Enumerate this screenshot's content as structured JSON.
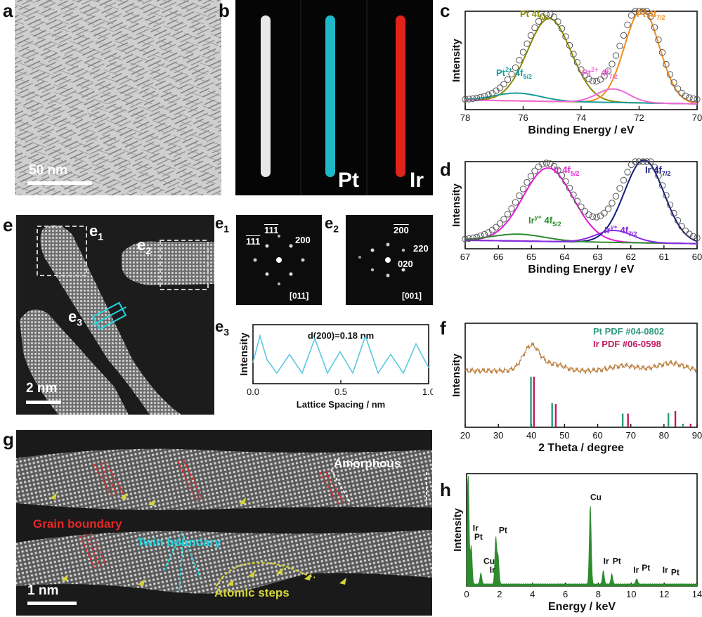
{
  "panels": {
    "a": {
      "label": "a",
      "scale": "50 nm"
    },
    "b": {
      "label": "b",
      "ch_pt": "Pt",
      "ch_ir": "Ir"
    },
    "c": {
      "label": "c"
    },
    "d": {
      "label": "d"
    },
    "e": {
      "label": "e",
      "e1": "e",
      "e1s": "1",
      "e2": "e",
      "e2s": "1",
      "e2b": "e",
      "e2bs": "2",
      "e3": "e",
      "e3s": "3",
      "scale": "2 nm"
    },
    "e1": {
      "label": "e",
      "sub": "1",
      "spots": [
        "111",
        "111",
        "200"
      ],
      "zone": "[011]"
    },
    "e2": {
      "label": "e",
      "sub": "2",
      "spots": [
        "200",
        "220",
        "020"
      ],
      "zone": "[001]"
    },
    "e3": {
      "label": "e",
      "sub": "3"
    },
    "f": {
      "label": "f"
    },
    "g": {
      "label": "g",
      "scale": "1 nm",
      "grain": "Grain boundary",
      "twin": "Twin boundary",
      "amorphous": "Amorphous",
      "steps": "Atomic steps"
    },
    "h": {
      "label": "h"
    }
  },
  "chart_data": [
    {
      "id": "c",
      "type": "line",
      "xlabel": "Binding Energy / eV",
      "ylabel": "Intensity",
      "xlim": [
        78,
        70
      ],
      "xticks": [
        "78",
        "76",
        "74",
        "72",
        "70"
      ],
      "peaks": [
        {
          "name": "Pt 4f",
          "sub": "5/2",
          "center": 75.1,
          "color": "#8b8b00"
        },
        {
          "name": "Pt 4f",
          "sub": "7/2",
          "center": 71.9,
          "color": "#f28c1c"
        },
        {
          "name": "Pt",
          "sup": "2+",
          "post": " 4f",
          "sub": "5/2",
          "center": 76.2,
          "color": "#1a9c9c"
        },
        {
          "name": "Pt",
          "sup": "2+",
          "post": " 4f",
          "sub": "7/2",
          "center": 72.9,
          "color": "#f06ad8"
        }
      ]
    },
    {
      "id": "d",
      "type": "line",
      "xlabel": "Binding Energy / eV",
      "ylabel": "Intensity",
      "xlim": [
        67,
        60
      ],
      "xticks": [
        "67",
        "66",
        "65",
        "64",
        "63",
        "62",
        "61",
        "60"
      ],
      "peaks": [
        {
          "name": "Ir 4f",
          "sub": "5/2",
          "center": 64.5,
          "color": "#e21fd6"
        },
        {
          "name": "Ir 4f",
          "sub": "7/2",
          "center": 61.6,
          "color": "#141a7a"
        },
        {
          "name": "Ir",
          "sup": "y+",
          "post": " 4f",
          "sub": "5/2",
          "center": 65.4,
          "color": "#2e8b2e"
        },
        {
          "name": "Ir",
          "sup": "y+",
          "post": " 4f",
          "sub": "7/2",
          "center": 62.5,
          "color": "#8a2be2"
        }
      ]
    },
    {
      "id": "e3",
      "type": "line",
      "title": "d(200)=0.18 nm",
      "xlabel": "Lattice Spacing / nm",
      "ylabel": "Intensity",
      "xlim": [
        0,
        1.25
      ],
      "xticks": [
        "0.0",
        "0.5",
        "1.0"
      ],
      "x": [
        0.0,
        0.05,
        0.1,
        0.17,
        0.26,
        0.35,
        0.44,
        0.53,
        0.62,
        0.71,
        0.8,
        0.89,
        0.98,
        1.07,
        1.16,
        1.25
      ],
      "y": [
        0.4,
        0.9,
        0.45,
        0.2,
        0.55,
        0.2,
        0.85,
        0.2,
        0.6,
        0.2,
        0.9,
        0.2,
        0.55,
        0.2,
        0.75,
        0.3
      ],
      "color": "#5bc8e0"
    },
    {
      "id": "f",
      "type": "bar",
      "xlabel": "2 Theta / degree",
      "ylabel": "Intensity",
      "xlim": [
        20,
        90
      ],
      "xticks": [
        "20",
        "30",
        "40",
        "50",
        "60",
        "70",
        "80",
        "90"
      ],
      "series": [
        {
          "name": "Pt PDF #04-0802",
          "color": "#2e9c7c",
          "x": [
            39.8,
            46.2,
            67.5,
            81.3,
            85.7
          ],
          "h": [
            1.0,
            0.48,
            0.27,
            0.28,
            0.07
          ]
        },
        {
          "name": "Ir PDF #06-0598",
          "color": "#c2185b",
          "x": [
            40.7,
            47.3,
            69.1,
            83.4,
            88.0
          ],
          "h": [
            1.0,
            0.46,
            0.27,
            0.32,
            0.07
          ]
        }
      ]
    },
    {
      "id": "h",
      "type": "line",
      "xlabel": "Energy / keV",
      "ylabel": "Intensity",
      "xlim": [
        0,
        15
      ],
      "xticks": [
        "0",
        "2",
        "4",
        "6",
        "8",
        "10",
        "12",
        "14"
      ],
      "color": "#2e8b2e",
      "peaks": [
        {
          "x": 0.1,
          "h": 1.0
        },
        {
          "x": 0.3,
          "h": 0.35
        },
        {
          "x": 0.93,
          "h": 0.1
        },
        {
          "x": 1.9,
          "h": 0.42
        },
        {
          "x": 2.05,
          "h": 0.25
        },
        {
          "x": 8.05,
          "h": 0.72
        },
        {
          "x": 8.9,
          "h": 0.12
        },
        {
          "x": 9.45,
          "h": 0.09
        },
        {
          "x": 11.07,
          "h": 0.05
        }
      ],
      "labels": [
        {
          "text": "Ir",
          "x": 0.4,
          "y": 0.5
        },
        {
          "text": "Pt",
          "x": 0.5,
          "y": 0.42
        },
        {
          "text": "Cu",
          "x": 1.1,
          "y": 0.2
        },
        {
          "text": "Ir",
          "x": 1.5,
          "y": 0.12
        },
        {
          "text": "Pt",
          "x": 2.1,
          "y": 0.48
        },
        {
          "text": "Cu",
          "x": 8.05,
          "y": 0.78
        },
        {
          "text": "Ir",
          "x": 8.9,
          "y": 0.2
        },
        {
          "text": "Pt",
          "x": 9.5,
          "y": 0.2
        },
        {
          "text": "Ir",
          "x": 10.85,
          "y": 0.12
        },
        {
          "text": "Pt",
          "x": 11.4,
          "y": 0.14
        },
        {
          "text": "Ir",
          "x": 12.75,
          "y": 0.12
        },
        {
          "text": "Pt",
          "x": 13.3,
          "y": 0.1
        }
      ]
    }
  ]
}
